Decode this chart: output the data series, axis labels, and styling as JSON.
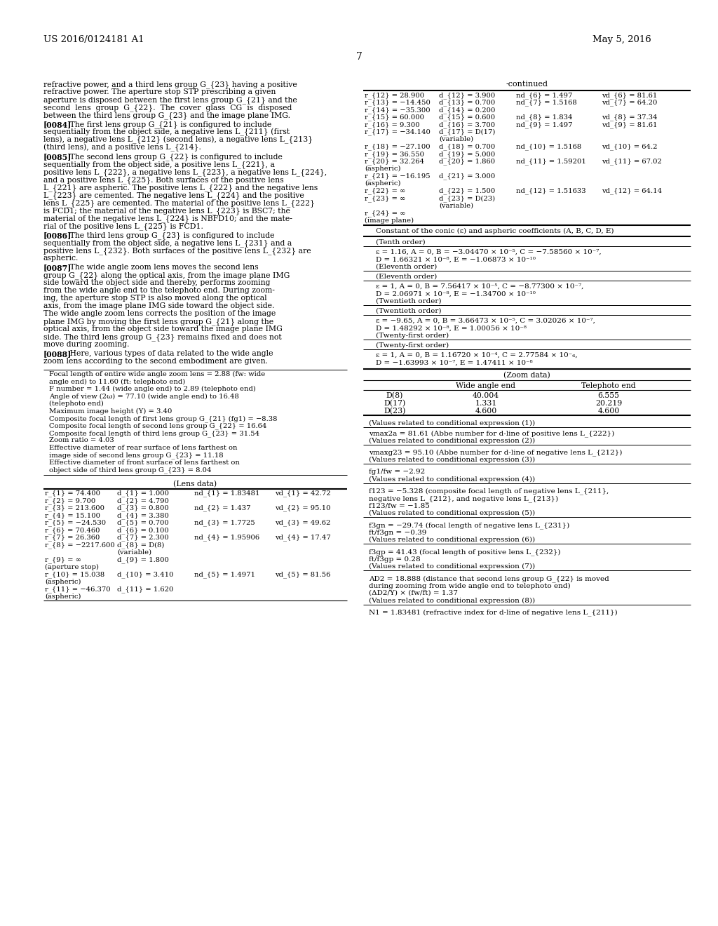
{
  "bg_color": "#ffffff",
  "header_left": "US 2016/0124181 A1",
  "header_right": "May 5, 2016",
  "page_number": "7",
  "left_col_para0": "refractive power, and a third lens group G_{23} having a positive\nrefractive power. The aperture stop STP prescribing a given\naperture is disposed between the first lens group G_{21} and the\nsecond  lens  group  G_{22}.  The  cover  glass  CG  is  disposed\nbetween the third lens group G_{23} and the image plane IMG.",
  "left_col_paras": [
    {
      "tag": "[0084]",
      "lines": [
        "   The first lens group G_{21} is configured to include",
        "sequentially from the object side, a negative lens L_{211} (first",
        "lens), a negative lens L_{212} (second lens), a negative lens L_{213}",
        "(third lens), and a positive lens L_{214}."
      ]
    },
    {
      "tag": "[0085]",
      "lines": [
        "   The second lens group G_{22} is configured to include",
        "sequentially from the object side, a positive lens L_{221}, a",
        "positive lens L_{222}, a negative lens L_{223}, a negative lens L_{224},",
        "and a positive lens L_{225}. Both surfaces of the positive lens",
        "L_{221} are aspheric. The positive lens L_{222} and the negative lens",
        "L_{223} are cemented. The negative lens L_{224} and the positive",
        "lens L_{225} are cemented. The material of the positive lens L_{222}",
        "is FCD1; the material of the negative lens L_{223} is BSC7; the",
        "material of the negative lens L_{224} is NBFD10; and the mate-",
        "rial of the positive lens L_{225} is FCD1."
      ]
    },
    {
      "tag": "[0086]",
      "lines": [
        "   The third lens group G_{23} is configured to include",
        "sequentially from the object side, a negative lens L_{231} and a",
        "positive lens L_{232}. Both surfaces of the positive lens L_{232} are",
        "aspheric."
      ]
    },
    {
      "tag": "[0087]",
      "lines": [
        "   The wide angle zoom lens moves the second lens",
        "group G_{22} along the optical axis, from the image plane IMG",
        "side toward the object side and thereby, performs zooming",
        "from the wide angle end to the telephoto end. During zoom-",
        "ing, the aperture stop STP is also moved along the optical",
        "axis, from the image plane IMG side toward the object side.",
        "The wide angle zoom lens corrects the position of the image",
        "plane IMG by moving the first lens group G_{21} along the",
        "optical axis, from the object side toward the image plane IMG",
        "side. The third lens group G_{23} remains fixed and does not",
        "move during zooming."
      ]
    },
    {
      "tag": "[0088]",
      "lines": [
        "   Here, various types of data related to the wide angle",
        "zoom lens according to the second embodiment are given."
      ]
    }
  ],
  "spec_box_lines": [
    "Focal length of entire wide angle zoom lens = 2.88 (fw: wide",
    "angle end) to 11.60 (ft: telephoto end)",
    "F number = 1.44 (wide angle end) to 2.89 (telephoto end)",
    "Angle of view (2ω) = 77.10 (wide angle end) to 16.48",
    "(telephoto end)",
    "Maximum image height (Y) = 3.40",
    "Composite focal length of first lens group G_{21} (fg1) = −8.38",
    "Composite focal length of second lens group G_{22} = 16.64",
    "Composite focal length of third lens group G_{23} = 31.54",
    "Zoom ratio = 4.03",
    "Effective diameter of rear surface of lens farthest on",
    "image side of second lens group G_{23} = 11.18",
    "Effective diameter of front surface of lens farthest on",
    "object side of third lens group G_{23} = 8.04"
  ],
  "lens_data_header": "(Lens data)",
  "lens_data_rows": [
    [
      "r_{1} = 74.400",
      "d_{1} = 1.000",
      "nd_{1} = 1.83481",
      "vd_{1} = 42.72"
    ],
    [
      "r_{2} = 9.700",
      "d_{2} = 4.790",
      "",
      ""
    ],
    [
      "r_{3} = 213.600",
      "d_{3} = 0.800",
      "nd_{2} = 1.437",
      "vd_{2} = 95.10"
    ],
    [
      "r_{4} = 15.100",
      "d_{4} = 3.380",
      "",
      ""
    ],
    [
      "r_{5} = −24.530",
      "d_{5} = 0.700",
      "nd_{3} = 1.7725",
      "vd_{3} = 49.62"
    ],
    [
      "r_{6} = 70.460",
      "d_{6} = 0.100",
      "",
      ""
    ],
    [
      "r_{7} = 26.360",
      "d_{7} = 2.300",
      "nd_{4} = 1.95906",
      "vd_{4} = 17.47"
    ],
    [
      "r_{8} = −2217.600",
      "d_{8} = D(8)",
      "",
      ""
    ],
    [
      "",
      "(variable)",
      "",
      ""
    ],
    [
      "r_{9} = ∞",
      "d_{9} = 1.800",
      "",
      ""
    ],
    [
      "(aperture stop)",
      "",
      "",
      ""
    ],
    [
      "r_{10} = 15.038",
      "d_{10} = 3.410",
      "nd_{5} = 1.4971",
      "vd_{5} = 81.56"
    ],
    [
      "(aspheric)",
      "",
      "",
      ""
    ],
    [
      "r_{11} = −46.370",
      "d_{11} = 1.620",
      "",
      ""
    ],
    [
      "(aspheric)",
      "",
      "",
      ""
    ]
  ],
  "right_lens_rows": [
    [
      "r_{12} = 28.900",
      "d_{12} = 3.900",
      "nd_{6} = 1.497",
      "vd_{6} = 81.61"
    ],
    [
      "r_{13} = −14.450",
      "d_{13} = 0.700",
      "nd_{7} = 1.5168",
      "vd_{7} = 64.20"
    ],
    [
      "r_{14} = −35.300",
      "d_{14} = 0.200",
      "",
      ""
    ],
    [
      "r_{15} = 60.000",
      "d_{15} = 0.600",
      "nd_{8} = 1.834",
      "vd_{8} = 37.34"
    ],
    [
      "r_{16} = 9.300",
      "d_{16} = 3.700",
      "nd_{9} = 1.497",
      "vd_{9} = 81.61"
    ],
    [
      "r_{17} = −34.140",
      "d_{17} = D(17)",
      "",
      ""
    ],
    [
      "",
      "(variable)",
      "",
      ""
    ],
    [
      "r_{18} = −27.100",
      "d_{18} = 0.700",
      "nd_{10} = 1.5168",
      "vd_{10} = 64.2"
    ],
    [
      "r_{19} = 36.550",
      "d_{19} = 5.000",
      "",
      ""
    ],
    [
      "r_{20} = 32.264",
      "d_{20} = 1.860",
      "nd_{11} = 1.59201",
      "vd_{11} = 67.02"
    ],
    [
      "(aspheric)",
      "",
      "",
      ""
    ],
    [
      "r_{21} = −16.195",
      "d_{21} = 3.000",
      "",
      ""
    ],
    [
      "(aspheric)",
      "",
      "",
      ""
    ],
    [
      "r_{22} = ∞",
      "d_{22} = 1.500",
      "nd_{12} = 1.51633",
      "vd_{12} = 64.14"
    ],
    [
      "r_{23} = ∞",
      "d_{23} = D(23)",
      "",
      ""
    ],
    [
      "",
      "(variable)",
      "",
      ""
    ],
    [
      "r_{24} = ∞",
      "",
      "",
      ""
    ],
    [
      "(image plane)",
      "",
      "",
      ""
    ]
  ],
  "conic_header": "Constant of the conic (ε) and aspheric coefficients (A, B, C, D, E)",
  "conic_blocks": [
    {
      "label": "(Tenth order)",
      "lines": [
        "ε = 1.16, A = 0, B = −3.04470 × 10⁻⁵, C = −7.58560 × 10⁻⁷,",
        "D = 1.66321 × 10⁻⁸, E = −1.06873 × 10⁻¹⁰",
        "(Eleventh order)"
      ]
    },
    {
      "label": "(Eleventh order)",
      "lines": [
        "ε = 1, A = 0, B = 7.56417 × 10⁻⁵, C = −8.77300 × 10⁻⁷,",
        "D = 2.06971 × 10⁻⁸, E = −1.34700 × 10⁻¹⁰",
        "(Twentieth order)"
      ]
    },
    {
      "label": "(Twentieth order)",
      "lines": [
        "ε = −9.65, A = 0, B = 3.66473 × 10⁻⁵, C = 3.02026 × 10⁻⁷,",
        "D = 1.48292 × 10⁻⁸, E = 1.00056 × 10⁻⁸",
        "(Twenty-first order)"
      ]
    },
    {
      "label": "(Twenty-first order)",
      "lines": [
        "ε = 1, A = 0, B = 1.16720 × 10⁻⁴, C = 2.77584 × 10⁻₆,",
        "D = −1.63993 × 10⁻⁷, E = 1.47411 × 10⁻⁸"
      ]
    }
  ],
  "zoom_data_header": "(Zoom data)",
  "zoom_col1": "Wide angle end",
  "zoom_col2": "Telephoto end",
  "zoom_rows": [
    [
      "D(8)",
      "40.004",
      "6.555"
    ],
    [
      "D(17)",
      "1.331",
      "20.219"
    ],
    [
      "D(23)",
      "4.600",
      "4.600"
    ]
  ],
  "cond_blocks": [
    {
      "header": "(Values related to conditional expression (1))",
      "lines": [
        "vmax2a = 81.61 (Abbe number for d-line of positive lens L_{222})",
        "(Values related to conditional expression (2))"
      ]
    },
    {
      "header": null,
      "lines": [
        "vmaxg23 = 95.10 (Abbe number for d-line of negative lens L_{212})",
        "(Values related to conditional expression (3))"
      ]
    },
    {
      "header": null,
      "lines": [
        "fg1/fw = −2.92",
        "(Values related to conditional expression (4))"
      ]
    },
    {
      "header": null,
      "lines": [
        "f123 = −5.328 (composite focal length of negative lens L_{211},",
        "negative lens L_{212}, and negative lens L_{213})",
        "f123/fw = −1.85",
        "(Values related to conditional expression (5))"
      ]
    },
    {
      "header": null,
      "lines": [
        "f3gn = −29.74 (focal length of negative lens L_{231})",
        "ft/f3gn = −0.39",
        "(Values related to conditional expression (6))"
      ]
    },
    {
      "header": null,
      "lines": [
        "f3gp = 41.43 (focal length of positive lens L_{232})",
        "ft/f3gp = 0.28",
        "(Values related to conditional expression (7))"
      ]
    },
    {
      "header": null,
      "lines": [
        "AD2 = 18.888 (distance that second lens group G_{22} is moved",
        "during zooming from wide angle end to telephoto end)",
        "(ΔD2/Y) × (fw/ft) = 1.37",
        "(Values related to conditional expression (8))"
      ]
    },
    {
      "header": null,
      "lines": [
        "N1 = 1.83481 (refractive index for d-line of negative lens L_{211})"
      ]
    }
  ]
}
